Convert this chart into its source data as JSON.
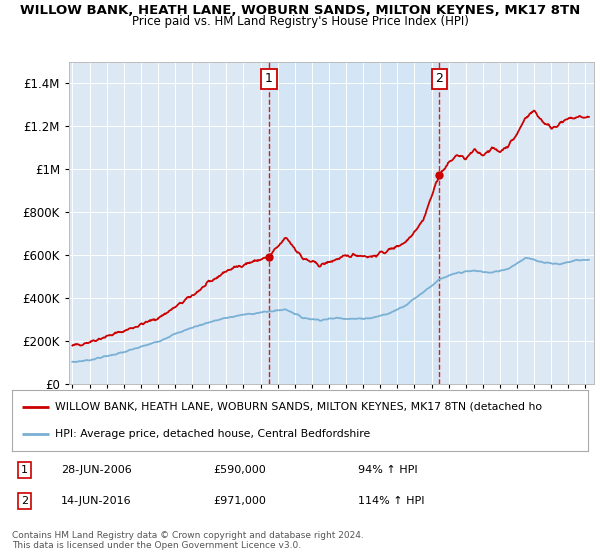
{
  "title1": "WILLOW BANK, HEATH LANE, WOBURN SANDS, MILTON KEYNES, MK17 8TN",
  "title2": "Price paid vs. HM Land Registry's House Price Index (HPI)",
  "bg_color": "#dce9f5",
  "highlight_color": "#c8dcf0",
  "sale1_date": 2006.49,
  "sale1_value": 590000,
  "sale2_date": 2016.45,
  "sale2_value": 971000,
  "legend_line1": "WILLOW BANK, HEATH LANE, WOBURN SANDS, MILTON KEYNES, MK17 8TN (detached ho",
  "legend_line2": "HPI: Average price, detached house, Central Bedfordshire",
  "annotation1_date": "28-JUN-2006",
  "annotation1_price": "£590,000",
  "annotation1_hpi": "94% ↑ HPI",
  "annotation2_date": "14-JUN-2016",
  "annotation2_price": "£971,000",
  "annotation2_hpi": "114% ↑ HPI",
  "footer": "Contains HM Land Registry data © Crown copyright and database right 2024.\nThis data is licensed under the Open Government Licence v3.0.",
  "ylim_max": 1500000,
  "xlim_start": 1994.8,
  "xlim_end": 2025.5,
  "red_color": "#cc0000",
  "blue_color": "#7ab0d4"
}
